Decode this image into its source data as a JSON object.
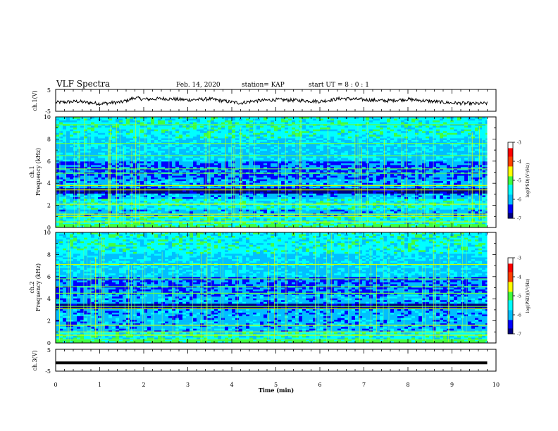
{
  "header": {
    "title": "VLF Spectra",
    "date": "Feb. 14, 2020",
    "station": "station= KAP",
    "start_ut": "start  UT =  8 : 0  : 1"
  },
  "chart_data": [
    {
      "type": "line",
      "panel": "ch1-waveform",
      "ylabel": "ch.1(V)",
      "ylim": [
        -5,
        5
      ],
      "yticks": [
        "5",
        "-5"
      ],
      "xlim": [
        0,
        10
      ],
      "description_values": "noisy waveform oscillating around about 0 V with swings between roughly -2 and +1 V",
      "x": [
        0,
        0.5,
        1.0,
        1.5,
        1.8,
        2.0,
        2.5,
        3.0,
        3.5,
        4.0,
        4.2,
        4.5,
        5.0,
        5.5,
        6.0,
        6.5,
        7.0,
        7.5,
        8.0,
        8.5,
        9.0,
        9.5,
        9.8
      ],
      "y": [
        -1.0,
        -0.5,
        -1.5,
        -0.8,
        1.2,
        0.5,
        0.8,
        0.2,
        0.6,
        -0.8,
        -1.2,
        -0.3,
        0.3,
        0.0,
        -0.5,
        0.9,
        0.3,
        -0.2,
        0.5,
        -0.4,
        -1.2,
        -1.5,
        -1.4
      ],
      "line_color": "#000000"
    },
    {
      "type": "heatmap",
      "panel": "ch1-spectrogram",
      "ylabel": "ch.1\nFrequency (kHz)",
      "ylim": [
        0,
        10
      ],
      "yticks": [
        "0",
        "2",
        "4",
        "6",
        "8",
        "10"
      ],
      "xlim": [
        0,
        10
      ],
      "colorbar": {
        "label": "log(PSD)(V²/Hz)",
        "range": [
          -7,
          -3
        ],
        "ticks": [
          "-3",
          "-4",
          "-5",
          "-6",
          "-7"
        ],
        "colors": [
          "#00007f",
          "#0000ff",
          "#00bfff",
          "#00ffff",
          "#40ff40",
          "#ffff00",
          "#ff4000",
          "#ff0000",
          "#ffffff"
        ]
      }
    },
    {
      "type": "heatmap",
      "panel": "ch2-spectrogram",
      "ylabel": "ch.2\nFrequency (kHz)",
      "ylim": [
        0,
        10
      ],
      "yticks": [
        "0",
        "2",
        "4",
        "6",
        "8",
        "10"
      ],
      "xlim": [
        0,
        10
      ],
      "colorbar": {
        "label": "log(PSD)(V²/Hz)",
        "range": [
          -7,
          -3
        ],
        "ticks": [
          "-3",
          "-4",
          "-5",
          "-6",
          "-7"
        ],
        "colors": [
          "#00007f",
          "#0000ff",
          "#00bfff",
          "#00ffff",
          "#40ff40",
          "#ffff00",
          "#ff4000",
          "#ff0000",
          "#ffffff"
        ]
      }
    },
    {
      "type": "line",
      "panel": "ch3-waveform",
      "ylabel": "ch.3(V)",
      "ylim": [
        -5,
        5
      ],
      "yticks": [
        "5",
        "-5"
      ],
      "xlim": [
        0,
        10
      ],
      "xlabel": "Time  (min)",
      "xticks": [
        "0",
        "1",
        "2",
        "3",
        "4",
        "5",
        "6",
        "7",
        "8",
        "9",
        "10"
      ],
      "x": [
        0,
        9.8
      ],
      "y": [
        -1.2,
        -1.2
      ],
      "line_color": "#000000"
    }
  ]
}
